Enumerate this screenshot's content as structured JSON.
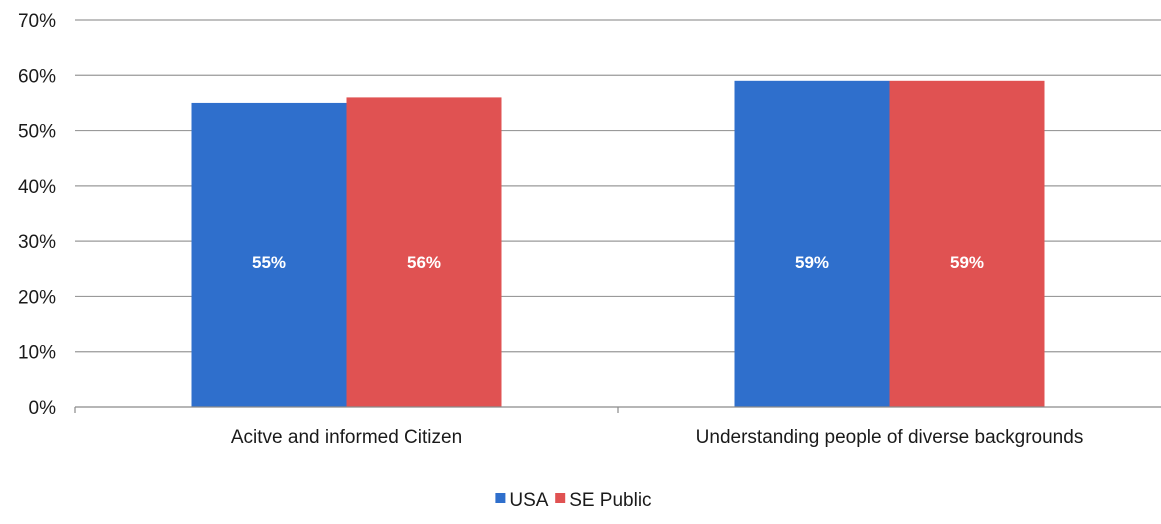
{
  "chart_data": {
    "type": "bar",
    "categories": [
      "Acitve and informed Citizen",
      "Understanding people of diverse backgrounds"
    ],
    "series": [
      {
        "name": "USA",
        "values": [
          55,
          59
        ],
        "labels": [
          "55%",
          "59%"
        ],
        "color": "#2f6fcc"
      },
      {
        "name": "SE Public",
        "values": [
          56,
          59
        ],
        "labels": [
          "56%",
          "59%"
        ],
        "color": "#e05252"
      }
    ],
    "ylim": [
      0,
      70
    ],
    "yticks": [
      0,
      10,
      20,
      30,
      40,
      50,
      60,
      70
    ],
    "ytick_labels": [
      "0%",
      "10%",
      "20%",
      "30%",
      "40%",
      "50%",
      "60%",
      "70%"
    ],
    "title": "",
    "xlabel": "",
    "ylabel": "",
    "grid": true,
    "legend_position": "bottom-center",
    "data_label_color": "#ffffff",
    "gridline_color": "#9a9a9a"
  }
}
